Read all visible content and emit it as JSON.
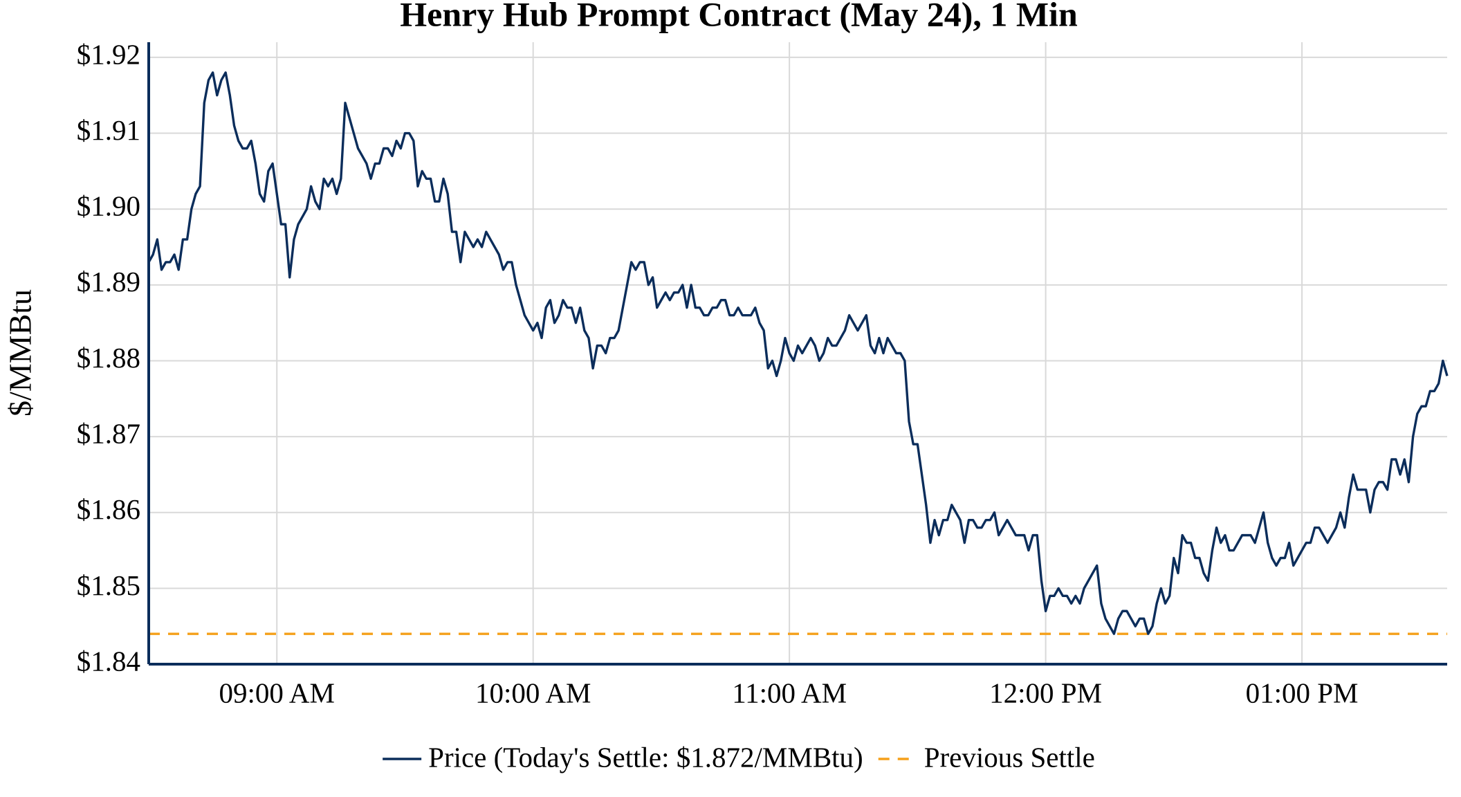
{
  "chart_data": {
    "type": "line",
    "title": "Henry Hub Prompt Contract (May 24), 1 Min",
    "y_label": "$/MMBtu",
    "x": [
      "08:30",
      "08:31",
      "08:32",
      "08:33",
      "08:34",
      "08:35",
      "08:36",
      "08:37",
      "08:38",
      "08:39",
      "08:40",
      "08:41",
      "08:42",
      "08:43",
      "08:44",
      "08:45",
      "08:46",
      "08:47",
      "08:48",
      "08:49",
      "08:50",
      "08:51",
      "08:52",
      "08:53",
      "08:54",
      "08:55",
      "08:56",
      "08:57",
      "08:58",
      "08:59",
      "09:00",
      "09:01",
      "09:02",
      "09:03",
      "09:04",
      "09:05",
      "09:06",
      "09:07",
      "09:08",
      "09:09",
      "09:10",
      "09:11",
      "09:12",
      "09:13",
      "09:14",
      "09:15",
      "09:16",
      "09:17",
      "09:18",
      "09:19",
      "09:20",
      "09:21",
      "09:22",
      "09:23",
      "09:24",
      "09:25",
      "09:26",
      "09:27",
      "09:28",
      "09:29",
      "09:30",
      "09:31",
      "09:32",
      "09:33",
      "09:34",
      "09:35",
      "09:36",
      "09:37",
      "09:38",
      "09:39",
      "09:40",
      "09:41",
      "09:42",
      "09:43",
      "09:44",
      "09:45",
      "09:46",
      "09:47",
      "09:48",
      "09:49",
      "09:50",
      "09:51",
      "09:52",
      "09:53",
      "09:54",
      "09:55",
      "09:56",
      "09:57",
      "09:58",
      "09:59",
      "10:00",
      "10:01",
      "10:02",
      "10:03",
      "10:04",
      "10:05",
      "10:06",
      "10:07",
      "10:08",
      "10:09",
      "10:10",
      "10:11",
      "10:12",
      "10:13",
      "10:14",
      "10:15",
      "10:16",
      "10:17",
      "10:18",
      "10:19",
      "10:20",
      "10:21",
      "10:22",
      "10:23",
      "10:24",
      "10:25",
      "10:26",
      "10:27",
      "10:28",
      "10:29",
      "10:30",
      "10:31",
      "10:32",
      "10:33",
      "10:34",
      "10:35",
      "10:36",
      "10:37",
      "10:38",
      "10:39",
      "10:40",
      "10:41",
      "10:42",
      "10:43",
      "10:44",
      "10:45",
      "10:46",
      "10:47",
      "10:48",
      "10:49",
      "10:50",
      "10:51",
      "10:52",
      "10:53",
      "10:54",
      "10:55",
      "10:56",
      "10:57",
      "10:58",
      "10:59",
      "11:00",
      "11:01",
      "11:02",
      "11:03",
      "11:04",
      "11:05",
      "11:06",
      "11:07",
      "11:08",
      "11:09",
      "11:10",
      "11:11",
      "11:12",
      "11:13",
      "11:14",
      "11:15",
      "11:16",
      "11:17",
      "11:18",
      "11:19",
      "11:20",
      "11:21",
      "11:22",
      "11:23",
      "11:24",
      "11:25",
      "11:26",
      "11:27",
      "11:28",
      "11:29",
      "11:30",
      "11:31",
      "11:32",
      "11:33",
      "11:34",
      "11:35",
      "11:36",
      "11:37",
      "11:38",
      "11:39",
      "11:40",
      "11:41",
      "11:42",
      "11:43",
      "11:44",
      "11:45",
      "11:46",
      "11:47",
      "11:48",
      "11:49",
      "11:50",
      "11:51",
      "11:52",
      "11:53",
      "11:54",
      "11:55",
      "11:56",
      "11:57",
      "11:58",
      "11:59",
      "12:00",
      "12:01",
      "12:02",
      "12:03",
      "12:04",
      "12:05",
      "12:06",
      "12:07",
      "12:08",
      "12:09",
      "12:10",
      "12:11",
      "12:12",
      "12:13",
      "12:14",
      "12:15",
      "12:16",
      "12:17",
      "12:18",
      "12:19",
      "12:20",
      "12:21",
      "12:22",
      "12:23",
      "12:24",
      "12:25",
      "12:26",
      "12:27",
      "12:28",
      "12:29",
      "12:30",
      "12:31",
      "12:32",
      "12:33",
      "12:34",
      "12:35",
      "12:36",
      "12:37",
      "12:38",
      "12:39",
      "12:40",
      "12:41",
      "12:42",
      "12:43",
      "12:44",
      "12:45",
      "12:46",
      "12:47",
      "12:48",
      "12:49",
      "12:50",
      "12:51",
      "12:52",
      "12:53",
      "12:54",
      "12:55",
      "12:56",
      "12:57",
      "12:58",
      "12:59",
      "13:00",
      "13:01",
      "13:02",
      "13:03",
      "13:04",
      "13:05",
      "13:06",
      "13:07",
      "13:08",
      "13:09",
      "13:10",
      "13:11",
      "13:12",
      "13:13",
      "13:14",
      "13:15",
      "13:16",
      "13:17",
      "13:18",
      "13:19",
      "13:20",
      "13:21",
      "13:22",
      "13:23",
      "13:24",
      "13:25",
      "13:26",
      "13:27",
      "13:28",
      "13:29",
      "13:30",
      "13:31",
      "13:32",
      "13:33",
      "13:34"
    ],
    "series": [
      {
        "name": "Price (Today's Settle: $1.872/MMBtu)",
        "color": "#0b2d5b",
        "values": [
          1.893,
          1.894,
          1.896,
          1.892,
          1.893,
          1.893,
          1.894,
          1.892,
          1.896,
          1.896,
          1.9,
          1.902,
          1.903,
          1.914,
          1.917,
          1.918,
          1.915,
          1.917,
          1.918,
          1.915,
          1.911,
          1.909,
          1.908,
          1.908,
          1.909,
          1.906,
          1.902,
          1.901,
          1.905,
          1.906,
          1.902,
          1.898,
          1.898,
          1.891,
          1.896,
          1.898,
          1.899,
          1.9,
          1.903,
          1.901,
          1.9,
          1.904,
          1.903,
          1.904,
          1.902,
          1.904,
          1.914,
          1.912,
          1.91,
          1.908,
          1.907,
          1.906,
          1.904,
          1.906,
          1.906,
          1.908,
          1.908,
          1.907,
          1.909,
          1.908,
          1.91,
          1.91,
          1.909,
          1.903,
          1.905,
          1.904,
          1.904,
          1.901,
          1.901,
          1.904,
          1.902,
          1.897,
          1.897,
          1.893,
          1.897,
          1.896,
          1.895,
          1.896,
          1.895,
          1.897,
          1.896,
          1.895,
          1.894,
          1.892,
          1.893,
          1.893,
          1.89,
          1.888,
          1.886,
          1.885,
          1.884,
          1.885,
          1.883,
          1.887,
          1.888,
          1.885,
          1.886,
          1.888,
          1.887,
          1.887,
          1.885,
          1.887,
          1.884,
          1.883,
          1.879,
          1.882,
          1.882,
          1.881,
          1.883,
          1.883,
          1.884,
          1.887,
          1.89,
          1.893,
          1.892,
          1.893,
          1.893,
          1.89,
          1.891,
          1.887,
          1.888,
          1.889,
          1.888,
          1.889,
          1.889,
          1.89,
          1.887,
          1.89,
          1.887,
          1.887,
          1.886,
          1.886,
          1.887,
          1.887,
          1.888,
          1.888,
          1.886,
          1.886,
          1.887,
          1.886,
          1.886,
          1.886,
          1.887,
          1.885,
          1.884,
          1.879,
          1.88,
          1.878,
          1.88,
          1.883,
          1.881,
          1.88,
          1.882,
          1.881,
          1.882,
          1.883,
          1.882,
          1.88,
          1.881,
          1.883,
          1.882,
          1.882,
          1.883,
          1.884,
          1.886,
          1.885,
          1.884,
          1.885,
          1.886,
          1.882,
          1.881,
          1.883,
          1.881,
          1.883,
          1.882,
          1.881,
          1.881,
          1.88,
          1.872,
          1.869,
          1.869,
          1.865,
          1.861,
          1.856,
          1.859,
          1.857,
          1.859,
          1.859,
          1.861,
          1.86,
          1.859,
          1.856,
          1.859,
          1.859,
          1.858,
          1.858,
          1.859,
          1.859,
          1.86,
          1.857,
          1.858,
          1.859,
          1.858,
          1.857,
          1.857,
          1.857,
          1.855,
          1.857,
          1.857,
          1.851,
          1.847,
          1.849,
          1.849,
          1.85,
          1.849,
          1.849,
          1.848,
          1.849,
          1.848,
          1.85,
          1.851,
          1.852,
          1.853,
          1.848,
          1.846,
          1.845,
          1.844,
          1.846,
          1.847,
          1.847,
          1.846,
          1.845,
          1.846,
          1.846,
          1.844,
          1.845,
          1.848,
          1.85,
          1.848,
          1.849,
          1.854,
          1.852,
          1.857,
          1.856,
          1.856,
          1.854,
          1.854,
          1.852,
          1.851,
          1.855,
          1.858,
          1.856,
          1.857,
          1.855,
          1.855,
          1.856,
          1.857,
          1.857,
          1.857,
          1.856,
          1.858,
          1.86,
          1.856,
          1.854,
          1.853,
          1.854,
          1.854,
          1.856,
          1.853,
          1.854,
          1.855,
          1.856,
          1.856,
          1.858,
          1.858,
          1.857,
          1.856,
          1.857,
          1.858,
          1.86,
          1.858,
          1.862,
          1.865,
          1.863,
          1.863,
          1.863,
          1.86,
          1.863,
          1.864,
          1.864,
          1.863,
          1.867,
          1.867,
          1.865,
          1.867,
          1.864,
          1.87,
          1.873,
          1.874,
          1.874,
          1.876,
          1.876,
          1.877,
          1.88,
          1.878
        ]
      }
    ],
    "hlines": [
      {
        "name": "Previous Settle",
        "value": 1.844,
        "color": "#f5a01a",
        "dashed": true
      }
    ],
    "xlim": [
      "08:30",
      "13:34"
    ],
    "xticks": [
      {
        "value": "09:00",
        "label": "09:00 AM"
      },
      {
        "value": "10:00",
        "label": "10:00 AM"
      },
      {
        "value": "11:00",
        "label": "11:00 AM"
      },
      {
        "value": "12:00",
        "label": "12:00 PM"
      },
      {
        "value": "13:00",
        "label": "01:00 PM"
      }
    ],
    "ylim": [
      1.84,
      1.922
    ],
    "yticks": [
      {
        "value": 1.84,
        "label": "$1.84"
      },
      {
        "value": 1.85,
        "label": "$1.85"
      },
      {
        "value": 1.86,
        "label": "$1.86"
      },
      {
        "value": 1.87,
        "label": "$1.87"
      },
      {
        "value": 1.88,
        "label": "$1.88"
      },
      {
        "value": 1.89,
        "label": "$1.89"
      },
      {
        "value": 1.9,
        "label": "$1.90"
      },
      {
        "value": 1.91,
        "label": "$1.91"
      },
      {
        "value": 1.92,
        "label": "$1.92"
      }
    ],
    "grid": true,
    "legend": "bottom"
  }
}
